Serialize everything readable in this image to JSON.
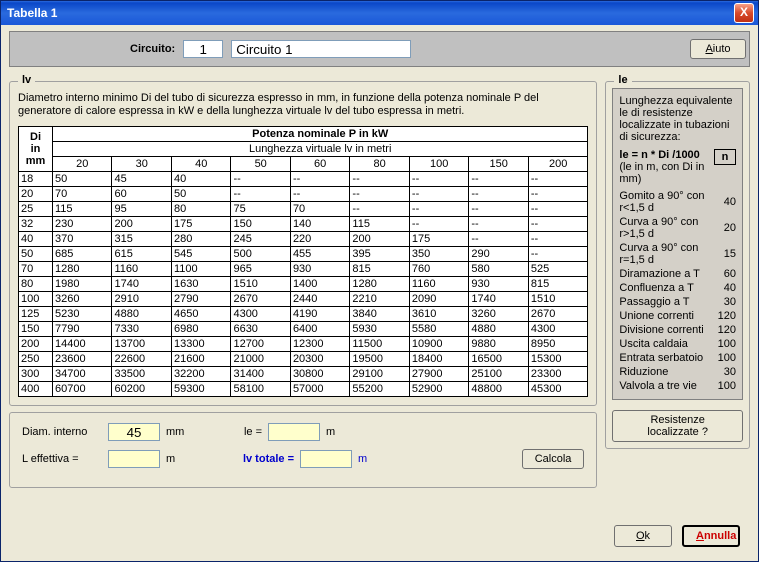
{
  "window": {
    "title": "Tabella 1"
  },
  "top": {
    "circuito_label": "Circuito:",
    "circuito_num": "1",
    "circuito_name": "Circuito 1",
    "aiuto": "Aiuto"
  },
  "lv": {
    "legend": "lv",
    "desc": "Diametro interno minimo Di del tubo di sicurezza espresso in mm, in funzione della potenza nominale P del generatore di calore espressa in kW e della lunghezza virtuale lv del tubo espressa in metri.",
    "di_header": "Di\nin\nmm",
    "p_header": "Potenza nominale P in kW",
    "lv_header": "Lunghezza virtuale lv in metri",
    "cols": [
      "20",
      "30",
      "40",
      "50",
      "60",
      "80",
      "100",
      "150",
      "200"
    ],
    "rows": [
      {
        "di": "18",
        "v": [
          "50",
          "45",
          "40",
          "--",
          "--",
          "--",
          "--",
          "--",
          "--"
        ]
      },
      {
        "di": "20",
        "v": [
          "70",
          "60",
          "50",
          "--",
          "--",
          "--",
          "--",
          "--",
          "--"
        ]
      },
      {
        "di": "25",
        "v": [
          "115",
          "95",
          "80",
          "75",
          "70",
          "--",
          "--",
          "--",
          "--"
        ]
      },
      {
        "di": "32",
        "v": [
          "230",
          "200",
          "175",
          "150",
          "140",
          "115",
          "--",
          "--",
          "--"
        ]
      },
      {
        "di": "40",
        "v": [
          "370",
          "315",
          "280",
          "245",
          "220",
          "200",
          "175",
          "--",
          "--"
        ]
      },
      {
        "di": "50",
        "v": [
          "685",
          "615",
          "545",
          "500",
          "455",
          "395",
          "350",
          "290",
          "--"
        ]
      },
      {
        "di": "70",
        "v": [
          "1280",
          "1160",
          "1100",
          "965",
          "930",
          "815",
          "760",
          "580",
          "525"
        ]
      },
      {
        "di": "80",
        "v": [
          "1980",
          "1740",
          "1630",
          "1510",
          "1400",
          "1280",
          "1160",
          "930",
          "815"
        ]
      },
      {
        "di": "100",
        "v": [
          "3260",
          "2910",
          "2790",
          "2670",
          "2440",
          "2210",
          "2090",
          "1740",
          "1510"
        ]
      },
      {
        "di": "125",
        "v": [
          "5230",
          "4880",
          "4650",
          "4300",
          "4190",
          "3840",
          "3610",
          "3260",
          "2670"
        ]
      },
      {
        "di": "150",
        "v": [
          "7790",
          "7330",
          "6980",
          "6630",
          "6400",
          "5930",
          "5580",
          "4880",
          "4300"
        ]
      },
      {
        "di": "200",
        "v": [
          "14400",
          "13700",
          "13300",
          "12700",
          "12300",
          "11500",
          "10900",
          "9880",
          "8950"
        ]
      },
      {
        "di": "250",
        "v": [
          "23600",
          "22600",
          "21600",
          "21000",
          "20300",
          "19500",
          "18400",
          "16500",
          "15300"
        ]
      },
      {
        "di": "300",
        "v": [
          "34700",
          "33500",
          "32200",
          "31400",
          "30800",
          "29100",
          "27900",
          "25100",
          "23300"
        ]
      },
      {
        "di": "400",
        "v": [
          "60700",
          "60200",
          "59300",
          "58100",
          "57000",
          "55200",
          "52900",
          "48800",
          "45300"
        ]
      }
    ]
  },
  "bottom": {
    "diam_label": "Diam. interno",
    "diam_val": "45",
    "mm": "mm",
    "le_label": "le =",
    "le_val": "",
    "m": "m",
    "leff_label": "L effettiva =",
    "leff_val": "",
    "lvtot_label": "lv totale =",
    "lvtot_val": "",
    "calcola": "Calcola"
  },
  "le": {
    "legend": "le",
    "intro": "Lunghezza equivalente le di resistenze localizzate in tubazioni di sicurezza:",
    "formula": "le = n * Di /1000",
    "units": "(le in m, con Di in mm)",
    "n": "n",
    "items": [
      {
        "label": "Gomito a 90° con r<1,5 d",
        "n": "40"
      },
      {
        "label": "Curva a 90° con r>1,5 d",
        "n": "20"
      },
      {
        "label": "Curva a 90° con r=1,5 d",
        "n": "15"
      },
      {
        "label": "Diramazione a T",
        "n": "60"
      },
      {
        "label": "Confluenza a T",
        "n": "40"
      },
      {
        "label": "Passaggio a T",
        "n": "30"
      },
      {
        "label": "Unione correnti",
        "n": "120"
      },
      {
        "label": "Divisione correnti",
        "n": "120"
      },
      {
        "label": "Uscita caldaia",
        "n": "100"
      },
      {
        "label": "Entrata serbatoio",
        "n": "100"
      },
      {
        "label": "Riduzione",
        "n": "30"
      },
      {
        "label": "Valvola a tre vie",
        "n": "100"
      }
    ],
    "res_btn": "Resistenze localizzate ?"
  },
  "footer": {
    "ok": "Ok",
    "annulla": "Annulla"
  }
}
